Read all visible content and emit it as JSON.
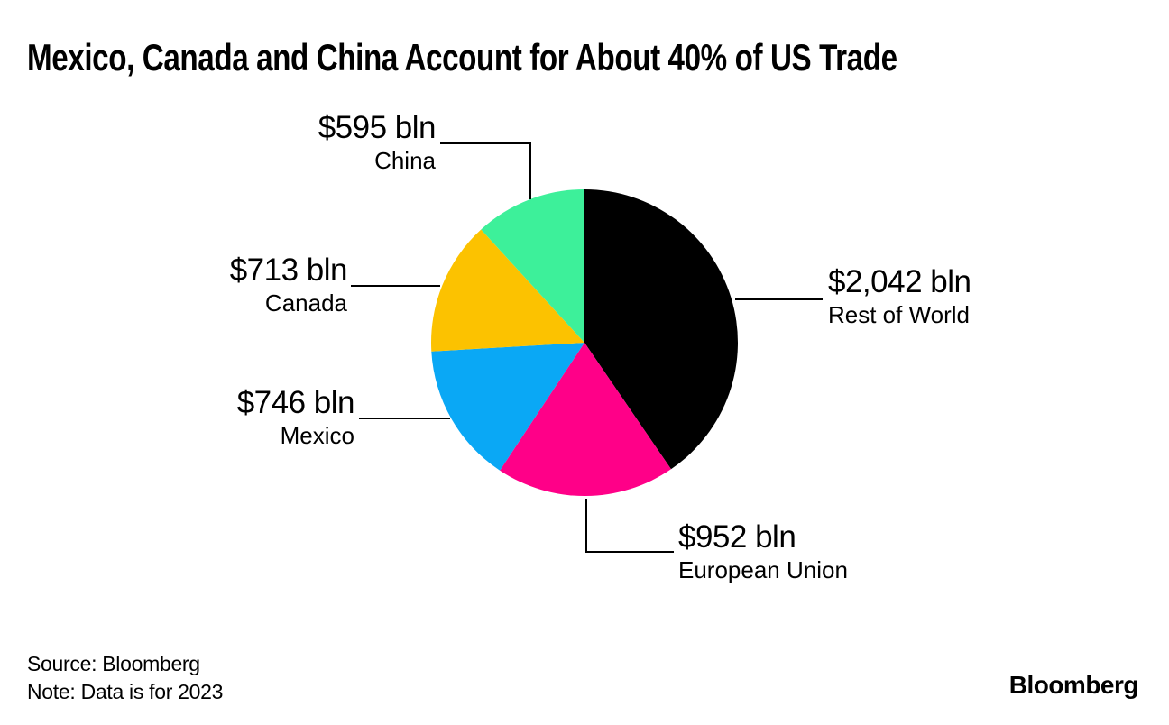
{
  "title": "Mexico, Canada and China Account for About 40% of US Trade",
  "footer": {
    "source": "Source: Bloomberg",
    "note": "Note: Data is for 2023"
  },
  "brand": "Bloomberg",
  "chart_data": {
    "type": "pie",
    "title": "Mexico, Canada and China Account for About 40% of US Trade",
    "unit": "US$ billions",
    "start_angle_deg": 0,
    "direction": "clockwise",
    "legend_position": "outside-callouts",
    "slices": [
      {
        "label": "Rest of World",
        "value": 2042,
        "display": "$2,042 bln",
        "color": "#000000"
      },
      {
        "label": "European Union",
        "value": 952,
        "display": "$952 bln",
        "color": "#ff0088"
      },
      {
        "label": "Mexico",
        "value": 746,
        "display": "$746 bln",
        "color": "#0aa8f5"
      },
      {
        "label": "Canada",
        "value": 713,
        "display": "$713 bln",
        "color": "#fcc200"
      },
      {
        "label": "China",
        "value": 595,
        "display": "$595 bln",
        "color": "#3df09a"
      }
    ]
  }
}
